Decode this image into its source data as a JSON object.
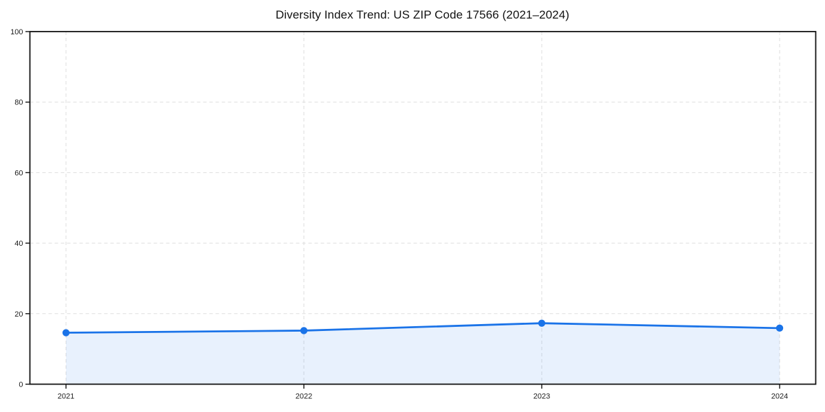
{
  "page": {
    "background_color": "#ffffff"
  },
  "chart_data": {
    "type": "area",
    "title": "Diversity Index Trend: US ZIP Code 17566 (2021–2024)",
    "categories": [
      "2021",
      "2022",
      "2023",
      "2024"
    ],
    "series": [
      {
        "name": "Diversity Index",
        "values": [
          14.6,
          15.2,
          17.3,
          15.9
        ]
      }
    ],
    "xlabel": "",
    "ylabel": "",
    "ylim": [
      0,
      100
    ],
    "yticks": [
      0,
      20,
      40,
      60,
      80,
      100
    ],
    "grid": "dashed",
    "legend": "none",
    "marker": "circle",
    "colors": {
      "line": "#1a73e8",
      "marker": "#1a73e8",
      "fill": "#1a73e8",
      "fill_opacity": "0.10",
      "grid": "#dedede",
      "spine": "#111111",
      "tick_label": "#1a1a1a",
      "title": "#111111"
    }
  }
}
